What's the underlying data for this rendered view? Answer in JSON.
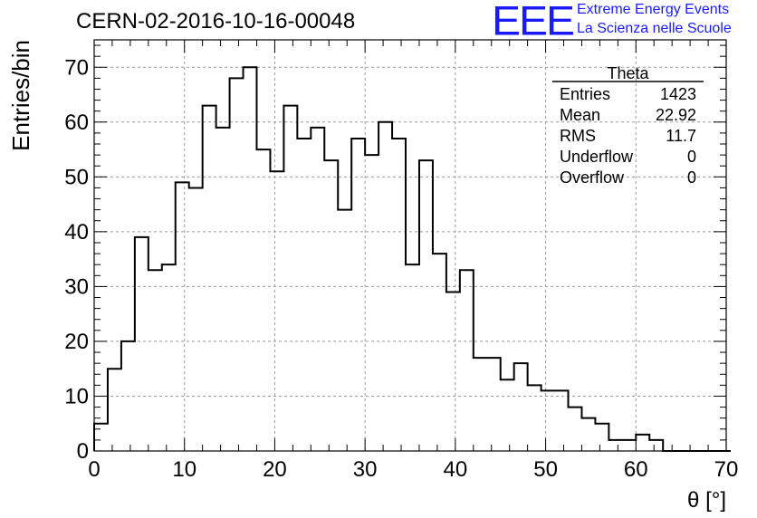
{
  "chart_data": {
    "type": "bar",
    "title": "CERN-02-2016-10-16-00048",
    "xlabel": "θ [°]",
    "ylabel": "Entries/bin",
    "xlim": [
      0,
      70
    ],
    "ylim": [
      0,
      75
    ],
    "x_ticks": [
      "0",
      "10",
      "20",
      "30",
      "40",
      "50",
      "60",
      "70"
    ],
    "y_ticks": [
      "0",
      "10",
      "20",
      "30",
      "40",
      "50",
      "60",
      "70"
    ],
    "grid": true,
    "bin_width": 1.5,
    "bin_edges_start": 0,
    "values": [
      5,
      15,
      20,
      39,
      33,
      34,
      49,
      48,
      63,
      59,
      68,
      70,
      55,
      51,
      63,
      57,
      59,
      53,
      44,
      57,
      54,
      60,
      57,
      34,
      53,
      36,
      29,
      33,
      17,
      17,
      13,
      16,
      12,
      11,
      11,
      8,
      6,
      5,
      2,
      2,
      3,
      2,
      0,
      0,
      0,
      0,
      0
    ],
    "stats_box": {
      "title": "Theta",
      "rows": [
        {
          "label": "Entries",
          "value": "1423"
        },
        {
          "label": "Mean",
          "value": "22.92"
        },
        {
          "label": "RMS",
          "value": "11.7"
        },
        {
          "label": "Underflow",
          "value": "0"
        },
        {
          "label": "Overflow",
          "value": "0"
        }
      ],
      "position": "top-right"
    },
    "line_color": "#000000"
  },
  "logo": {
    "mark": "EEE",
    "line1": "Extreme Energy Events",
    "line2": "La Scienza nelle Scuole",
    "color": "#1a1aff"
  }
}
